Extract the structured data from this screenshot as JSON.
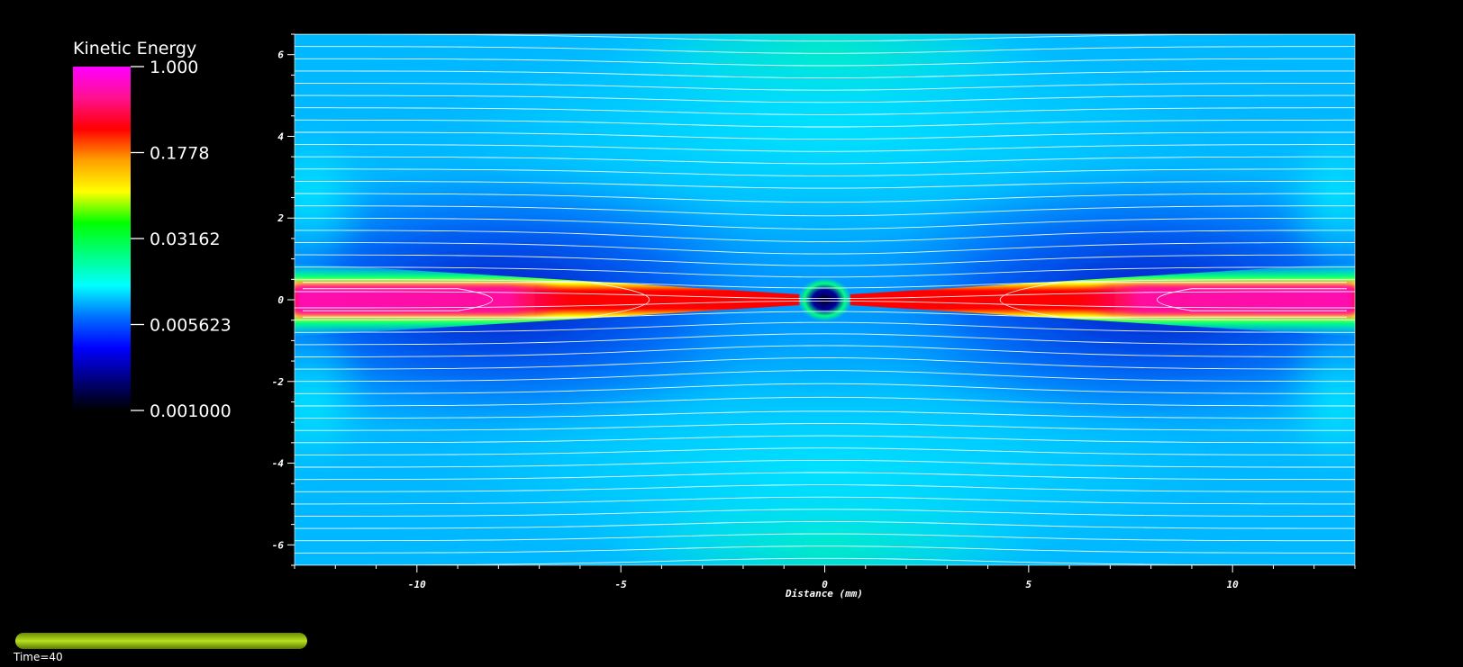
{
  "chart_data": {
    "type": "heatmap",
    "title": "",
    "xlabel": "Distance (mm)",
    "ylabel": "",
    "xlim": [
      -13,
      13
    ],
    "ylim": [
      -6.5,
      6.5
    ],
    "x_ticks": [
      -10,
      -5,
      0,
      5,
      10
    ],
    "y_ticks": [
      6,
      4,
      2,
      0,
      -2,
      -4,
      -6
    ],
    "colorbar": {
      "title": "Kinetic Energy",
      "scale": "log",
      "range": [
        0.001,
        1.0
      ],
      "tick_labels": [
        "1.000",
        "0.1778",
        "0.03162",
        "0.005623",
        "0.001000"
      ],
      "tick_values": [
        1.0,
        0.1778,
        0.03162,
        0.005623,
        0.001
      ],
      "colormap": [
        "#000000",
        "#000080",
        "#0000ff",
        "#0070ff",
        "#00ffff",
        "#00ff80",
        "#00ff00",
        "#ffff00",
        "#ffa000",
        "#ff0000",
        "#ff1090",
        "#ff00ff"
      ]
    },
    "field_lines": "white contour/stream lines",
    "grid": false
  },
  "time_annotation": "Time=40",
  "progress": {
    "fill_fraction": 1.0,
    "color": "#9ac21a"
  }
}
